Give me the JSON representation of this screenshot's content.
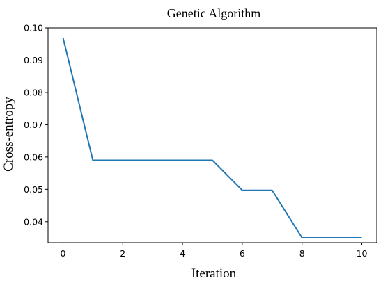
{
  "chart_data": {
    "type": "line",
    "title": "Genetic Algorithm",
    "xlabel": "Iteration",
    "ylabel": "Cross-entropy",
    "xlim": [
      -0.5,
      10.5
    ],
    "ylim": [
      0.0335,
      0.1
    ],
    "xticks": [
      0,
      2,
      4,
      6,
      8,
      10
    ],
    "yticks": [
      0.04,
      0.05,
      0.06,
      0.07,
      0.08,
      0.09,
      0.1
    ],
    "ytick_labels": [
      "0.04",
      "0.05",
      "0.06",
      "0.07",
      "0.08",
      "0.09",
      "0.10"
    ],
    "grid": false,
    "line_color": "#1f77b4",
    "series": [
      {
        "x": [
          0,
          1,
          2,
          3,
          4,
          5,
          6,
          7,
          8,
          9,
          10
        ],
        "values": [
          0.097,
          0.059,
          0.059,
          0.059,
          0.059,
          0.059,
          0.0497,
          0.0497,
          0.035,
          0.035,
          0.035
        ]
      }
    ]
  }
}
